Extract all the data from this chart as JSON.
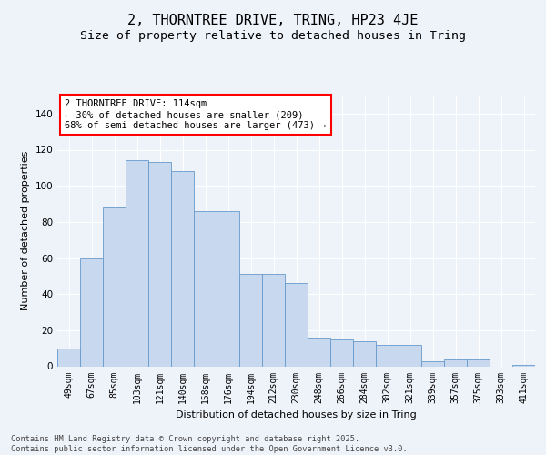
{
  "title1": "2, THORNTREE DRIVE, TRING, HP23 4JE",
  "title2": "Size of property relative to detached houses in Tring",
  "xlabel": "Distribution of detached houses by size in Tring",
  "ylabel": "Number of detached properties",
  "categories": [
    "49sqm",
    "67sqm",
    "85sqm",
    "103sqm",
    "121sqm",
    "140sqm",
    "158sqm",
    "176sqm",
    "194sqm",
    "212sqm",
    "230sqm",
    "248sqm",
    "266sqm",
    "284sqm",
    "302sqm",
    "321sqm",
    "339sqm",
    "357sqm",
    "375sqm",
    "393sqm",
    "411sqm"
  ],
  "values": [
    10,
    60,
    88,
    114,
    113,
    108,
    86,
    86,
    51,
    51,
    46,
    16,
    15,
    14,
    12,
    12,
    3,
    4,
    4,
    0,
    1
  ],
  "bar_color": "#c8d8ef",
  "bar_edge_color": "#6699cc",
  "annotation_box_text": "2 THORNTREE DRIVE: 114sqm\n← 30% of detached houses are smaller (209)\n68% of semi-detached houses are larger (473) →",
  "ylim": [
    0,
    150
  ],
  "yticks": [
    0,
    20,
    40,
    60,
    80,
    100,
    120,
    140
  ],
  "background_color": "#eef2f9",
  "grid_color": "#ffffff",
  "footnote": "Contains HM Land Registry data © Crown copyright and database right 2025.\nContains public sector information licensed under the Open Government Licence v3.0.",
  "title1_fontsize": 11,
  "title2_fontsize": 9.5,
  "xlabel_fontsize": 8,
  "ylabel_fontsize": 8,
  "annot_fontsize": 7.5,
  "tick_fontsize": 7
}
